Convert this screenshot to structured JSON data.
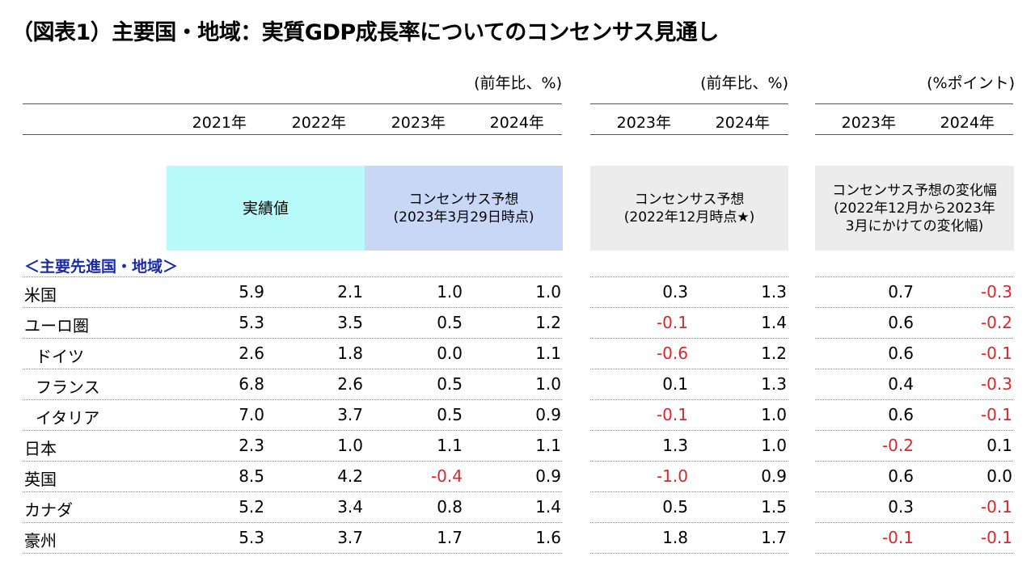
{
  "title": "（図表1）主要国・地域：実質GDP成長率についてのコンセンサス見通し",
  "units": [
    "(前年比、%)",
    "(前年比、%)",
    "(%ポイント)"
  ],
  "years": {
    "g1": [
      "2021年",
      "2022年",
      "2023年",
      "2024年"
    ],
    "g2": [
      "2023年",
      "2024年"
    ],
    "g3": [
      "2023年",
      "2024年"
    ]
  },
  "boxes": {
    "actual": "実績値",
    "consensus_line1": "コンセンサス予想",
    "consensus_line2": "(2023年3月29日時点)",
    "prev_line1": "コンセンサス予想",
    "prev_line2": "(2022年12月時点★)",
    "change_line1": "コンセンサス予想の変化幅",
    "change_line2": "(2022年12月から2023年",
    "change_line3": "3月にかけての変化幅)"
  },
  "colors": {
    "actual_bg": "#b8fbfb",
    "consensus_bg": "#c9d7f7",
    "gray_bg": "#ececec",
    "negative": "#d8262b",
    "section": "#1a2ba8"
  },
  "section_label": "＜主要先進国・地域＞",
  "rows": [
    {
      "name": "米国",
      "indent": false,
      "v": [
        "5.9",
        "2.1",
        "1.0",
        "1.0",
        "0.3",
        "1.3",
        "0.7",
        "-0.3"
      ]
    },
    {
      "name": "ユーロ圏",
      "indent": false,
      "v": [
        "5.3",
        "3.5",
        "0.5",
        "1.2",
        "-0.1",
        "1.4",
        "0.6",
        "-0.2"
      ]
    },
    {
      "name": "ドイツ",
      "indent": true,
      "v": [
        "2.6",
        "1.8",
        "0.0",
        "1.1",
        "-0.6",
        "1.2",
        "0.6",
        "-0.1"
      ]
    },
    {
      "name": "フランス",
      "indent": true,
      "v": [
        "6.8",
        "2.6",
        "0.5",
        "1.0",
        "0.1",
        "1.3",
        "0.4",
        "-0.3"
      ]
    },
    {
      "name": "イタリア",
      "indent": true,
      "v": [
        "7.0",
        "3.7",
        "0.5",
        "0.9",
        "-0.1",
        "1.0",
        "0.6",
        "-0.1"
      ]
    },
    {
      "name": "日本",
      "indent": false,
      "v": [
        "2.3",
        "1.0",
        "1.1",
        "1.1",
        "1.3",
        "1.0",
        "-0.2",
        "0.1"
      ]
    },
    {
      "name": "英国",
      "indent": false,
      "v": [
        "8.5",
        "4.2",
        "-0.4",
        "0.9",
        "-1.0",
        "0.9",
        "0.6",
        "0.0"
      ]
    },
    {
      "name": "カナダ",
      "indent": false,
      "v": [
        "5.2",
        "3.4",
        "0.8",
        "1.4",
        "0.5",
        "1.5",
        "0.3",
        "-0.1"
      ]
    },
    {
      "name": "豪州",
      "indent": false,
      "v": [
        "5.3",
        "3.7",
        "1.7",
        "1.6",
        "1.8",
        "1.7",
        "-0.1",
        "-0.1"
      ]
    }
  ]
}
